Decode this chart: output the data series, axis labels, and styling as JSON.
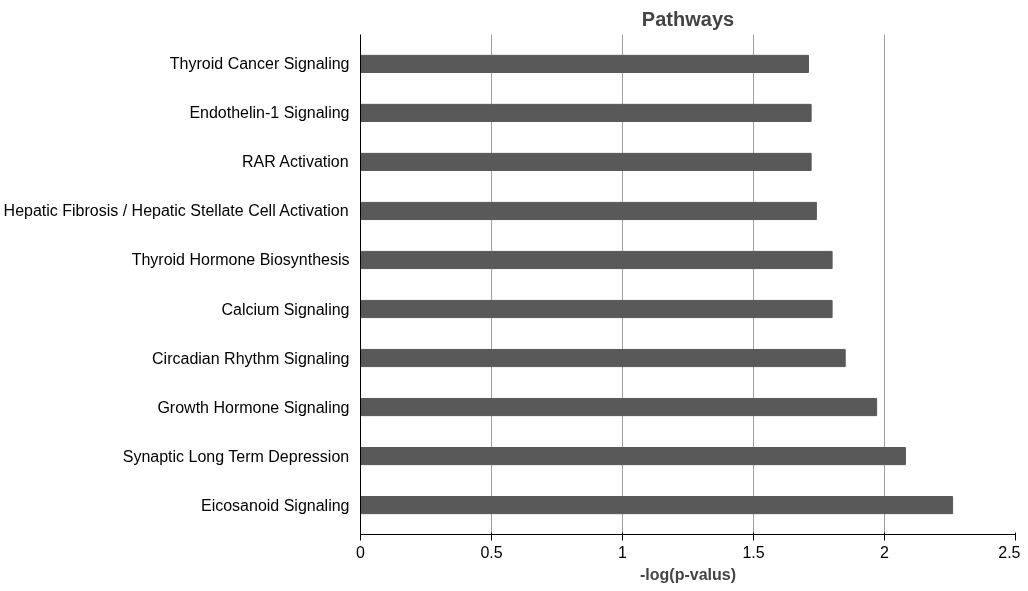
{
  "chart_data": {
    "type": "bar",
    "orientation": "horizontal",
    "title": "Pathways",
    "xlabel": "-log(p-valus)",
    "categories": [
      "Thyroid Cancer Signaling",
      "Endothelin-1 Signaling",
      "RAR Activation",
      "Hepatic Fibrosis / Hepatic Stellate Cell Activation",
      "Thyroid Hormone Biosynthesis",
      "Calcium Signaling",
      "Circadian Rhythm Signaling",
      "Growth Hormone Signaling",
      "Synaptic Long Term Depression",
      "Eicosanoid Signaling"
    ],
    "values": [
      1.71,
      1.72,
      1.72,
      1.74,
      1.8,
      1.8,
      1.85,
      1.97,
      2.08,
      2.26
    ],
    "color": "#595959",
    "xlim": [
      0,
      2.5
    ],
    "xticks": [
      0,
      0.5,
      1,
      1.5,
      2,
      2.5
    ],
    "grid": "x"
  }
}
